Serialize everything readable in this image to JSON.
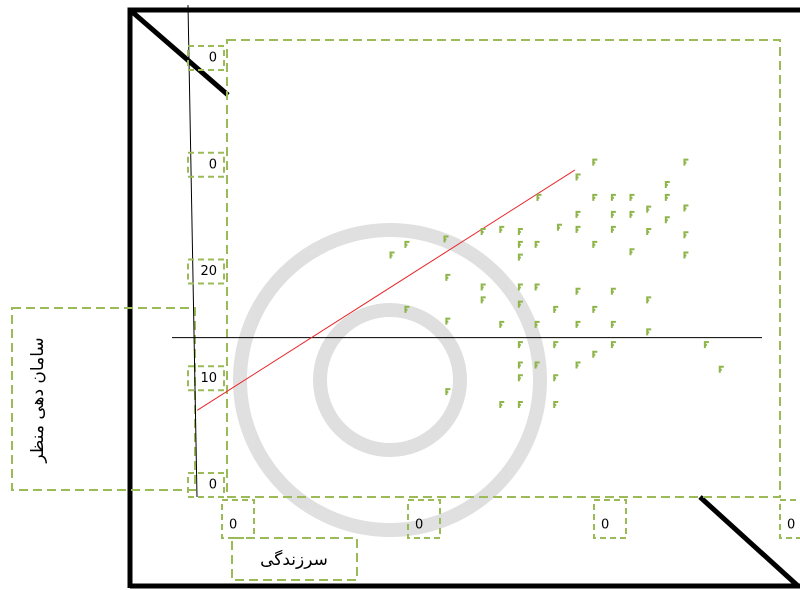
{
  "chart_data": {
    "type": "scatter",
    "x_label": "سرزندگی",
    "y_label": "سامان دهی منظر",
    "color": "#8db54a",
    "x": [
      19.7,
      18.9,
      21.8,
      23.8,
      26.8,
      28.9,
      29.8,
      34.7,
      29.8,
      30.8,
      31.8,
      33.7,
      33.7,
      34.7,
      32.7,
      33.7,
      34.7,
      32.7,
      31.8,
      30.8,
      28.9,
      30.8,
      28.9,
      27.9,
      25.8,
      24.8,
      25.8,
      26.7,
      29.8,
      31.8,
      34.7,
      25.8,
      21.9,
      23.8,
      25.8,
      26.7,
      28.9,
      30.8,
      32.7,
      23.8,
      25.8,
      27.7,
      29.8,
      19.7,
      21.9,
      24.8,
      26.7,
      28.9,
      30.8,
      32.7,
      25.8,
      27.7,
      30.8,
      29.8,
      35.8,
      36.6,
      25.8,
      26.7,
      28.9,
      25.8,
      27.7,
      21.9,
      24.8,
      25.8,
      27.7
    ],
    "y": [
      22.5,
      21.5,
      23.0,
      23.7,
      26.9,
      28.8,
      30.2,
      30.2,
      26.9,
      26.9,
      26.9,
      28.1,
      26.9,
      25.9,
      25.8,
      24.8,
      23.4,
      23.7,
      25.3,
      25.3,
      25.3,
      23.9,
      23.9,
      24.1,
      23.7,
      23.9,
      22.5,
      22.5,
      22.5,
      21.8,
      21.5,
      21.3,
      19.4,
      18.5,
      18.5,
      18.5,
      18.1,
      18.1,
      17.3,
      17.3,
      16.9,
      16.4,
      16.4,
      16.4,
      15.3,
      15.0,
      15.0,
      15.0,
      15.0,
      14.3,
      13.1,
      13.1,
      13.1,
      12.2,
      13.1,
      10.8,
      11.2,
      11.2,
      11.2,
      10.0,
      10.0,
      8.7,
      7.5,
      7.5,
      7.5
    ],
    "trendline": {
      "x": [
        8.4,
        28.7
      ],
      "y": [
        7.0,
        29.5
      ],
      "color": "#e8262a"
    },
    "reference_line_y": 13.8,
    "xlim": [
      10,
      40
    ],
    "ylim": [
      0,
      40
    ],
    "xticks": [
      {
        "value": 10,
        "label": "0"
      },
      {
        "value": 20,
        "label": "0"
      },
      {
        "value": 30,
        "label": "0"
      },
      {
        "value": 40,
        "label": "0"
      }
    ],
    "yticks": [
      0,
      10,
      20,
      {
        "value": 30,
        "label": "0"
      },
      {
        "value": 40,
        "label": "0"
      }
    ]
  }
}
